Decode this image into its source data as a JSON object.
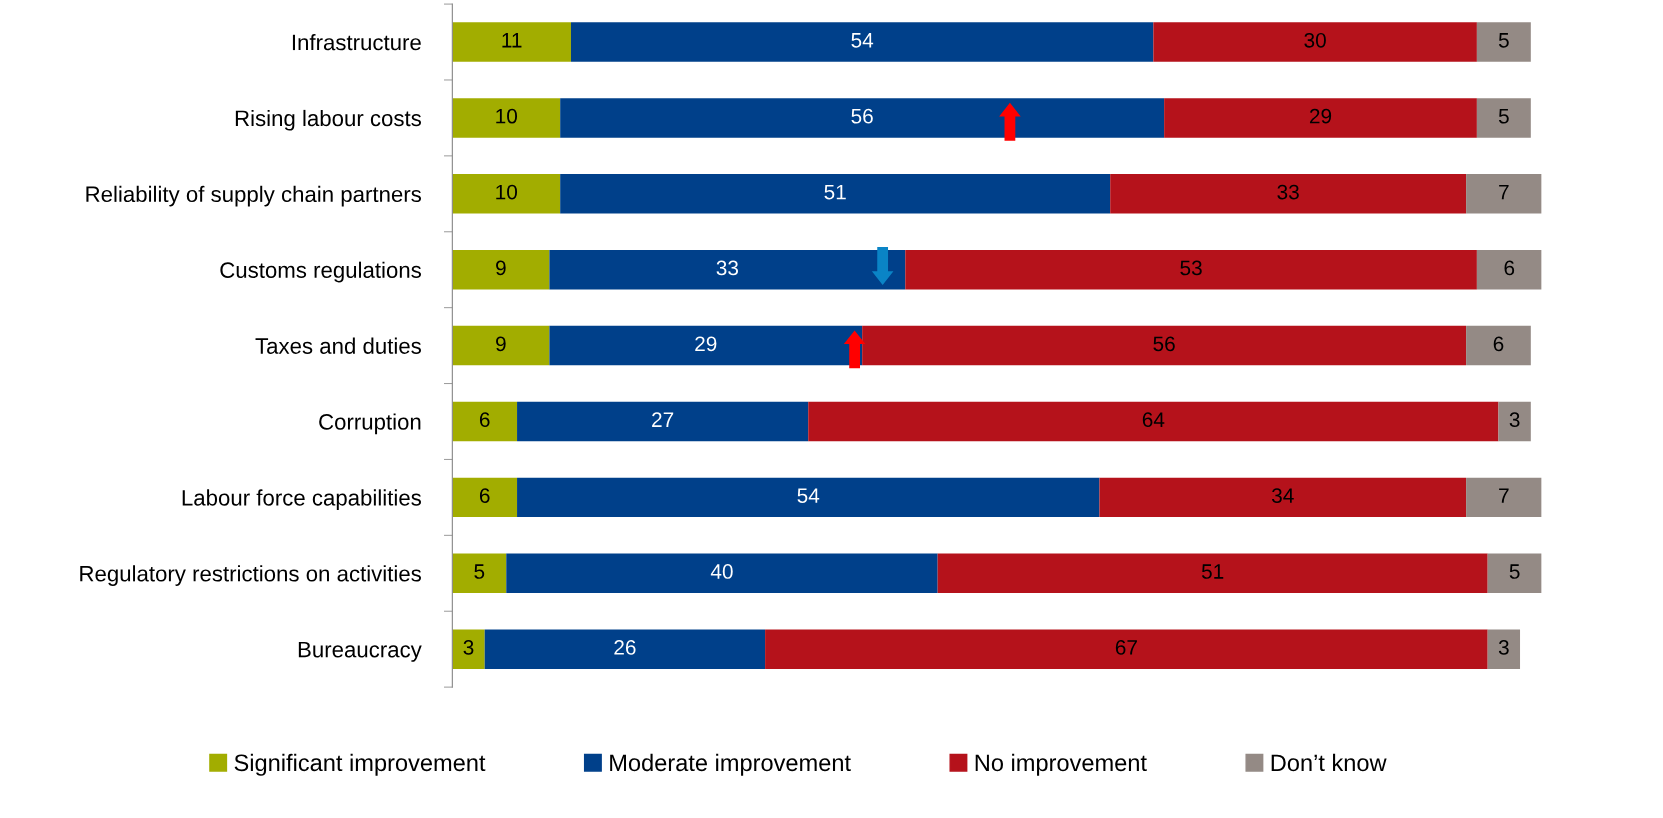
{
  "chart_data": {
    "type": "bar",
    "orientation": "horizontal",
    "stacked": true,
    "data_labels": true,
    "legend": "bottom",
    "grid": false,
    "tick_labels": "y",
    "categories": [
      "Infrastructure",
      "Rising labour costs",
      "Reliability of supply chain partners",
      "Customs regulations",
      "Taxes and duties",
      "Corruption",
      "Labour force capabilities",
      "Regulatory restrictions on activities",
      "Bureaucracy"
    ],
    "series": [
      {
        "name": "Significant improvement",
        "color": "#a2ad00",
        "values": [
          11,
          10,
          10,
          9,
          9,
          6,
          6,
          5,
          3
        ]
      },
      {
        "name": "Moderate improvement",
        "color": "#00408a",
        "values": [
          54,
          56,
          51,
          33,
          29,
          27,
          54,
          40,
          26
        ]
      },
      {
        "name": "No improvement",
        "color": "#b5121b",
        "values": [
          30,
          29,
          33,
          53,
          56,
          64,
          34,
          51,
          67
        ]
      },
      {
        "name": "Don’t know",
        "color": "#948a85",
        "values": [
          5,
          5,
          7,
          6,
          6,
          3,
          7,
          5,
          3
        ]
      }
    ]
  }
}
